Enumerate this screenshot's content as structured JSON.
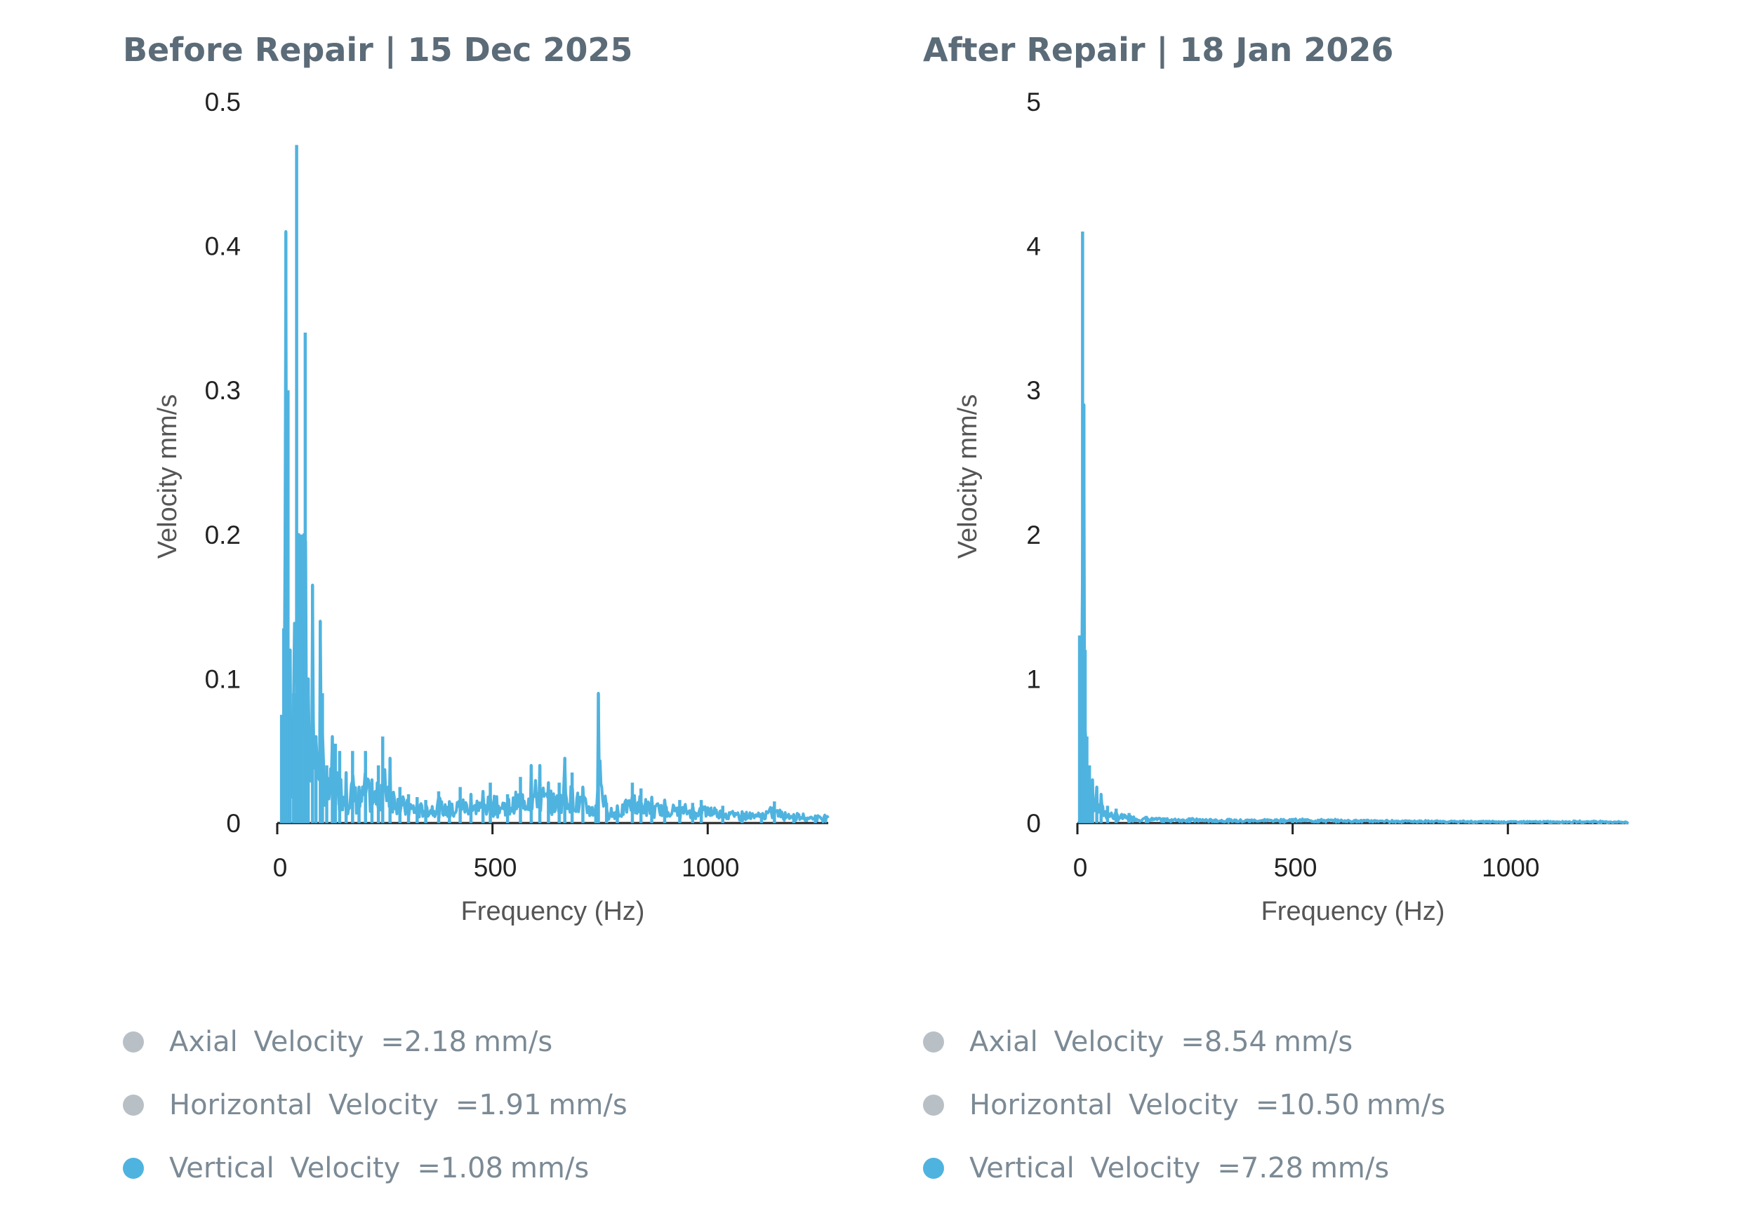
{
  "colors": {
    "series": "#4fb3e0",
    "legend_inactive": "#b8c0c6",
    "title": "#5b6b78"
  },
  "chart_data": [
    {
      "type": "line",
      "title": "Before Repair | 15 Dec 2025",
      "xlabel": "Frequency (Hz)",
      "ylabel": "Velocity mm/s",
      "xlim": [
        0,
        1280
      ],
      "ylim": [
        0,
        0.5
      ],
      "xticks": [
        0,
        500,
        1000
      ],
      "yticks": [
        0,
        0.1,
        0.2,
        0.3,
        0.4,
        0.5
      ],
      "series": [
        {
          "name": "Vertical Velocity",
          "peaks": [
            [
              10,
              0.075
            ],
            [
              15,
              0.135
            ],
            [
              20,
              0.41
            ],
            [
              25,
              0.3
            ],
            [
              30,
              0.12
            ],
            [
              38,
              0.09
            ],
            [
              45,
              0.47
            ],
            [
              50,
              0.2
            ],
            [
              55,
              0.2
            ],
            [
              62,
              0.2
            ],
            [
              65,
              0.34
            ],
            [
              72,
              0.1
            ],
            [
              82,
              0.165
            ],
            [
              90,
              0.06
            ],
            [
              100,
              0.14
            ],
            [
              105,
              0.09
            ],
            [
              115,
              0.04
            ],
            [
              128,
              0.06
            ],
            [
              135,
              0.055
            ],
            [
              145,
              0.05
            ],
            [
              160,
              0.035
            ],
            [
              175,
              0.05
            ],
            [
              190,
              0.025
            ],
            [
              205,
              0.05
            ],
            [
              220,
              0.03
            ],
            [
              235,
              0.04
            ],
            [
              245,
              0.06
            ],
            [
              262,
              0.045
            ],
            [
              285,
              0.025
            ],
            [
              305,
              0.02
            ],
            [
              325,
              0.018
            ],
            [
              345,
              0.016
            ],
            [
              375,
              0.022
            ],
            [
              400,
              0.015
            ],
            [
              425,
              0.025
            ],
            [
              450,
              0.02
            ],
            [
              478,
              0.022
            ],
            [
              495,
              0.028
            ],
            [
              535,
              0.02
            ],
            [
              565,
              0.032
            ],
            [
              590,
              0.04
            ],
            [
              610,
              0.04
            ],
            [
              630,
              0.028
            ],
            [
              655,
              0.028
            ],
            [
              668,
              0.045
            ],
            [
              685,
              0.035
            ],
            [
              710,
              0.025
            ],
            [
              740,
              0.012
            ],
            [
              746,
              0.09
            ],
            [
              765,
              0.014
            ],
            [
              790,
              0.012
            ],
            [
              825,
              0.028
            ],
            [
              845,
              0.024
            ],
            [
              870,
              0.018
            ],
            [
              900,
              0.016
            ],
            [
              935,
              0.016
            ],
            [
              965,
              0.014
            ],
            [
              985,
              0.016
            ],
            [
              1035,
              0.012
            ],
            [
              1080,
              0.008
            ],
            [
              1125,
              0.007
            ],
            [
              1155,
              0.015
            ],
            [
              1200,
              0.006
            ],
            [
              1250,
              0.005
            ]
          ],
          "noise_floor": 0.006
        }
      ],
      "legend": [
        {
          "name": "Axial Velocity",
          "value": "2.18",
          "unit": "mm/s",
          "color": "#b8c0c6"
        },
        {
          "name": "Horizontal Velocity",
          "value": "1.91",
          "unit": "mm/s",
          "color": "#b8c0c6"
        },
        {
          "name": "Vertical Velocity",
          "value": "1.08",
          "unit": "mm/s",
          "color": "#4fb3e0"
        }
      ]
    },
    {
      "type": "line",
      "title": "After Repair | 18 Jan 2026",
      "xlabel": "Frequency (Hz)",
      "ylabel": "Velocity mm/s",
      "xlim": [
        0,
        1280
      ],
      "ylim": [
        0,
        5
      ],
      "xticks": [
        0,
        500,
        1000
      ],
      "yticks": [
        0,
        1,
        2,
        3,
        4,
        5
      ],
      "series": [
        {
          "name": "Vertical Velocity",
          "peaks": [
            [
              5,
              1.3
            ],
            [
              8,
              1.0
            ],
            [
              12,
              4.1
            ],
            [
              15,
              2.9
            ],
            [
              18,
              1.2
            ],
            [
              22,
              0.6
            ],
            [
              28,
              0.4
            ],
            [
              35,
              0.3
            ],
            [
              45,
              0.25
            ],
            [
              55,
              0.2
            ],
            [
              70,
              0.12
            ],
            [
              90,
              0.1
            ],
            [
              120,
              0.07
            ],
            [
              160,
              0.05
            ],
            [
              200,
              0.04
            ],
            [
              260,
              0.04
            ],
            [
              320,
              0.03
            ],
            [
              400,
              0.03
            ],
            [
              500,
              0.035
            ],
            [
              560,
              0.03
            ],
            [
              650,
              0.025
            ],
            [
              750,
              0.02
            ],
            [
              850,
              0.015
            ],
            [
              950,
              0.012
            ],
            [
              1050,
              0.01
            ],
            [
              1150,
              0.012
            ],
            [
              1200,
              0.015
            ],
            [
              1250,
              0.008
            ]
          ],
          "noise_floor": 0.015
        }
      ],
      "legend": [
        {
          "name": "Axial Velocity",
          "value": "8.54",
          "unit": "mm/s",
          "color": "#b8c0c6"
        },
        {
          "name": "Horizontal Velocity",
          "value": "10.50",
          "unit": "mm/s",
          "color": "#b8c0c6"
        },
        {
          "name": "Vertical Velocity",
          "value": "7.28",
          "unit": "mm/s",
          "color": "#4fb3e0"
        }
      ]
    }
  ]
}
